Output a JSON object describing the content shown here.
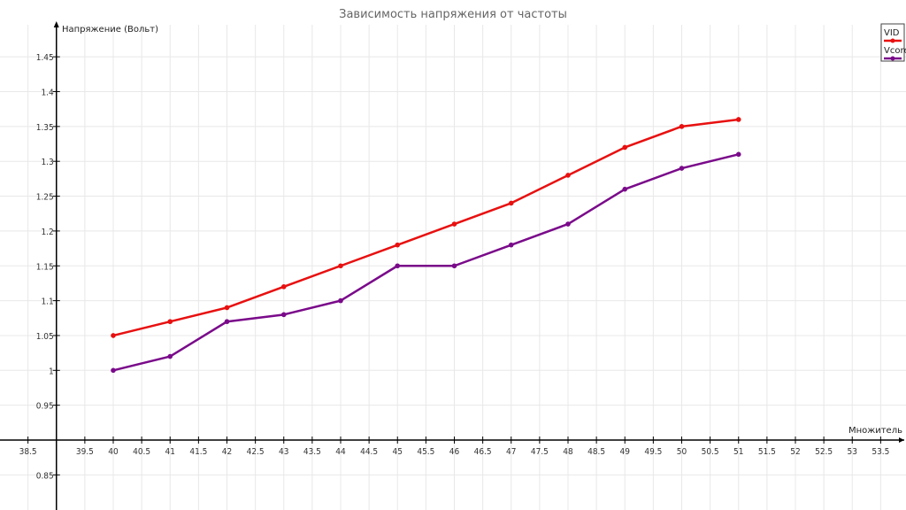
{
  "chart_data": {
    "type": "line",
    "title": "Зависимость напряжения от частоты",
    "xlabel": "Множитель",
    "ylabel": "Напряжение (Вольт)",
    "xlim": [
      38.0,
      54.0
    ],
    "ylim": [
      0.8,
      1.5
    ],
    "x_ticks": [
      38.5,
      39.5,
      40,
      40.5,
      41,
      41.5,
      42,
      42.5,
      43,
      43.5,
      44,
      44.5,
      45,
      45.5,
      46,
      46.5,
      47,
      47.5,
      48,
      48.5,
      49,
      49.5,
      50,
      50.5,
      51,
      51.5,
      52,
      52.5,
      53,
      53.5
    ],
    "y_ticks": [
      0.85,
      0.95,
      1,
      1.05,
      1.1,
      1.15,
      1.2,
      1.25,
      1.3,
      1.35,
      1.4,
      1.45
    ],
    "y_tick_labels": [
      "0.85",
      "0.95",
      "1",
      "1.05",
      "1.1",
      "1.15",
      "1.2",
      "1.25",
      "1.3",
      "1.35",
      "1.4",
      "1.45"
    ],
    "x": [
      40,
      41,
      42,
      43,
      44,
      45,
      46,
      47,
      48,
      49,
      50,
      51
    ],
    "series": [
      {
        "name": "VID",
        "color": "#e81010",
        "values": [
          1.05,
          1.07,
          1.09,
          1.12,
          1.15,
          1.18,
          1.21,
          1.24,
          1.28,
          1.32,
          1.35,
          1.36
        ]
      },
      {
        "name": "Vcore",
        "color": "#7a0a8a",
        "values": [
          1.0,
          1.02,
          1.07,
          1.08,
          1.1,
          1.15,
          1.15,
          1.18,
          1.21,
          1.26,
          1.29,
          1.31
        ]
      }
    ],
    "grid": true,
    "legend": "top-right"
  }
}
